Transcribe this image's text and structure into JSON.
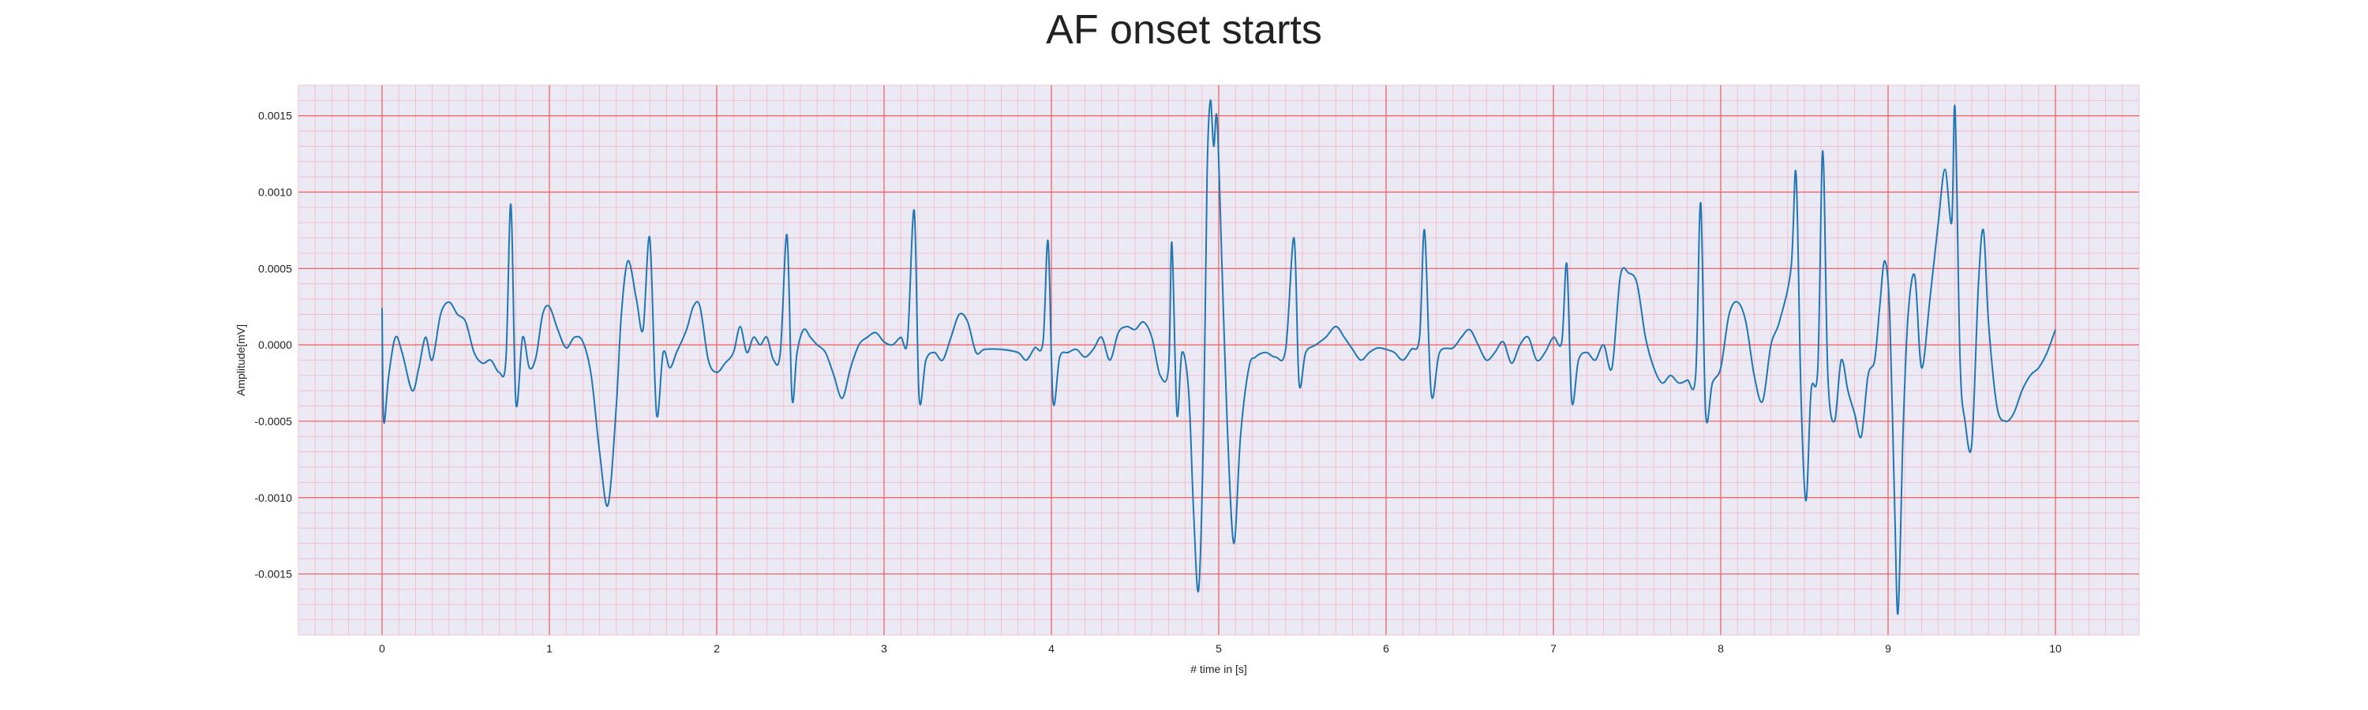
{
  "chart_data": {
    "type": "line",
    "title": "AF onset starts",
    "xlabel": "# time in [s]",
    "ylabel": "Amplitude[mV]",
    "xlim": [
      -0.5,
      10.5
    ],
    "ylim": [
      -0.0019,
      0.0017
    ],
    "xticks": [
      0,
      1,
      2,
      3,
      4,
      5,
      6,
      7,
      8,
      9,
      10
    ],
    "xtick_labels": [
      "0",
      "1",
      "2",
      "3",
      "4",
      "5",
      "6",
      "7",
      "8",
      "9",
      "10"
    ],
    "yticks": [
      0.0015,
      0.001,
      0.0005,
      0.0,
      -0.0005,
      -0.001,
      -0.0015
    ],
    "ytick_labels": [
      "0.0015",
      "0.0010",
      "0.0005",
      "0.0000",
      "-0.0005",
      "-0.0010",
      "-0.0015"
    ],
    "grid": true,
    "colors": {
      "background": "#eae9f4",
      "major_grid": "#f25a5a",
      "minor_grid": "#f2b8c4",
      "line": "#1f77b4"
    },
    "series": [
      {
        "points": [
          [
            0.0,
            0.00024
          ],
          [
            0.01,
            -0.0005
          ],
          [
            0.04,
            -0.0002
          ],
          [
            0.08,
            5e-05
          ],
          [
            0.12,
            -5e-05
          ],
          [
            0.18,
            -0.0003
          ],
          [
            0.22,
            -0.00015
          ],
          [
            0.26,
            5e-05
          ],
          [
            0.3,
            -0.0001
          ],
          [
            0.35,
            0.0002
          ],
          [
            0.4,
            0.00028
          ],
          [
            0.45,
            0.0002
          ],
          [
            0.5,
            0.00015
          ],
          [
            0.55,
            -5e-05
          ],
          [
            0.6,
            -0.00012
          ],
          [
            0.65,
            -0.0001
          ],
          [
            0.7,
            -0.00018
          ],
          [
            0.74,
            -0.0001
          ],
          [
            0.77,
            0.00092
          ],
          [
            0.8,
            -0.00038
          ],
          [
            0.84,
            5e-05
          ],
          [
            0.88,
            -0.00015
          ],
          [
            0.92,
            -8e-05
          ],
          [
            0.96,
            0.0002
          ],
          [
            1.0,
            0.00025
          ],
          [
            1.05,
            0.0001
          ],
          [
            1.1,
            -2e-05
          ],
          [
            1.15,
            5e-05
          ],
          [
            1.2,
            2e-05
          ],
          [
            1.25,
            -0.0002
          ],
          [
            1.3,
            -0.0007
          ],
          [
            1.35,
            -0.00105
          ],
          [
            1.4,
            -0.0004
          ],
          [
            1.43,
            0.0002
          ],
          [
            1.47,
            0.00055
          ],
          [
            1.52,
            0.0003
          ],
          [
            1.56,
            0.0001
          ],
          [
            1.6,
            0.0007
          ],
          [
            1.64,
            -0.00045
          ],
          [
            1.68,
            -5e-05
          ],
          [
            1.72,
            -0.00015
          ],
          [
            1.76,
            -5e-05
          ],
          [
            1.82,
            0.0001
          ],
          [
            1.86,
            0.00025
          ],
          [
            1.9,
            0.00025
          ],
          [
            1.95,
            -0.0001
          ],
          [
            2.0,
            -0.00018
          ],
          [
            2.05,
            -0.00012
          ],
          [
            2.1,
            -5e-05
          ],
          [
            2.14,
            0.00012
          ],
          [
            2.18,
            -5e-05
          ],
          [
            2.22,
            5e-05
          ],
          [
            2.26,
            0.0
          ],
          [
            2.3,
            5e-05
          ],
          [
            2.34,
            -0.0001
          ],
          [
            2.38,
            -5e-05
          ],
          [
            2.42,
            0.00072
          ],
          [
            2.45,
            -0.00035
          ],
          [
            2.48,
            -5e-05
          ],
          [
            2.52,
            0.0001
          ],
          [
            2.56,
            5e-05
          ],
          [
            2.6,
            0.0
          ],
          [
            2.65,
            -5e-05
          ],
          [
            2.7,
            -0.0002
          ],
          [
            2.75,
            -0.00035
          ],
          [
            2.8,
            -0.00015
          ],
          [
            2.85,
            0.0
          ],
          [
            2.9,
            5e-05
          ],
          [
            2.95,
            8e-05
          ],
          [
            3.0,
            2e-05
          ],
          [
            3.05,
            0.0
          ],
          [
            3.1,
            5e-05
          ],
          [
            3.14,
            3e-05
          ],
          [
            3.18,
            0.00088
          ],
          [
            3.21,
            -0.00035
          ],
          [
            3.25,
            -0.0001
          ],
          [
            3.3,
            -5e-05
          ],
          [
            3.35,
            -0.0001
          ],
          [
            3.4,
            5e-05
          ],
          [
            3.45,
            0.0002
          ],
          [
            3.5,
            0.00015
          ],
          [
            3.55,
            -5e-05
          ],
          [
            3.6,
            -3e-05
          ],
          [
            3.7,
            -3e-05
          ],
          [
            3.8,
            -5e-05
          ],
          [
            3.85,
            -0.0001
          ],
          [
            3.9,
            -2e-05
          ],
          [
            3.95,
            2e-05
          ],
          [
            3.98,
            0.00068
          ],
          [
            4.01,
            -0.00037
          ],
          [
            4.05,
            -8e-05
          ],
          [
            4.1,
            -5e-05
          ],
          [
            4.15,
            -3e-05
          ],
          [
            4.2,
            -8e-05
          ],
          [
            4.25,
            -3e-05
          ],
          [
            4.3,
            5e-05
          ],
          [
            4.35,
            -0.0001
          ],
          [
            4.4,
            8e-05
          ],
          [
            4.45,
            0.00012
          ],
          [
            4.5,
            0.0001
          ],
          [
            4.55,
            0.00015
          ],
          [
            4.6,
            5e-05
          ],
          [
            4.65,
            -0.0002
          ],
          [
            4.7,
            -0.00015
          ],
          [
            4.72,
            0.00067
          ],
          [
            4.75,
            -0.00045
          ],
          [
            4.78,
            -5e-05
          ],
          [
            4.82,
            -0.0003
          ],
          [
            4.85,
            -0.0011
          ],
          [
            4.88,
            -0.0016
          ],
          [
            4.91,
            -0.0005
          ],
          [
            4.93,
            0.0011
          ],
          [
            4.95,
            0.0016
          ],
          [
            4.97,
            0.0013
          ],
          [
            4.99,
            0.00148
          ],
          [
            5.02,
            0.0005
          ],
          [
            5.05,
            -0.0005
          ],
          [
            5.09,
            -0.0013
          ],
          [
            5.13,
            -0.0006
          ],
          [
            5.18,
            -0.00015
          ],
          [
            5.22,
            -8e-05
          ],
          [
            5.28,
            -5e-05
          ],
          [
            5.34,
            -8e-05
          ],
          [
            5.4,
            -3e-05
          ],
          [
            5.45,
            0.0007
          ],
          [
            5.48,
            -0.00025
          ],
          [
            5.52,
            -5e-05
          ],
          [
            5.58,
            0.0
          ],
          [
            5.64,
            5e-05
          ],
          [
            5.7,
            0.00012
          ],
          [
            5.75,
            5e-05
          ],
          [
            5.8,
            -3e-05
          ],
          [
            5.85,
            -0.0001
          ],
          [
            5.9,
            -5e-05
          ],
          [
            5.95,
            -2e-05
          ],
          [
            6.0,
            -3e-05
          ],
          [
            6.05,
            -5e-05
          ],
          [
            6.1,
            -0.0001
          ],
          [
            6.15,
            -3e-05
          ],
          [
            6.2,
            5e-05
          ],
          [
            6.23,
            0.00075
          ],
          [
            6.27,
            -0.00032
          ],
          [
            6.32,
            -5e-05
          ],
          [
            6.4,
            -2e-05
          ],
          [
            6.45,
            5e-05
          ],
          [
            6.5,
            0.0001
          ],
          [
            6.55,
            0.0
          ],
          [
            6.6,
            -0.0001
          ],
          [
            6.65,
            -5e-05
          ],
          [
            6.7,
            2e-05
          ],
          [
            6.75,
            -0.00012
          ],
          [
            6.8,
            0.0
          ],
          [
            6.85,
            5e-05
          ],
          [
            6.9,
            -0.0001
          ],
          [
            6.95,
            -5e-05
          ],
          [
            7.0,
            5e-05
          ],
          [
            7.05,
            2e-05
          ],
          [
            7.08,
            0.00053
          ],
          [
            7.11,
            -0.00037
          ],
          [
            7.15,
            -0.0001
          ],
          [
            7.2,
            -5e-05
          ],
          [
            7.25,
            -0.0001
          ],
          [
            7.3,
            0.0
          ],
          [
            7.35,
            -0.00015
          ],
          [
            7.4,
            0.00045
          ],
          [
            7.45,
            0.00047
          ],
          [
            7.5,
            0.0004
          ],
          [
            7.55,
            5e-05
          ],
          [
            7.6,
            -0.00015
          ],
          [
            7.65,
            -0.00025
          ],
          [
            7.7,
            -0.0002
          ],
          [
            7.75,
            -0.00025
          ],
          [
            7.8,
            -0.00023
          ],
          [
            7.85,
            -0.0002
          ],
          [
            7.88,
            0.00093
          ],
          [
            7.91,
            -0.00045
          ],
          [
            7.95,
            -0.00025
          ],
          [
            8.0,
            -0.00015
          ],
          [
            8.05,
            0.0002
          ],
          [
            8.1,
            0.00028
          ],
          [
            8.15,
            0.00015
          ],
          [
            8.2,
            -0.0002
          ],
          [
            8.25,
            -0.00037
          ],
          [
            8.3,
            0.0
          ],
          [
            8.35,
            0.00015
          ],
          [
            8.42,
            0.0005
          ],
          [
            8.45,
            0.00112
          ],
          [
            8.48,
            -0.00035
          ],
          [
            8.51,
            -0.00102
          ],
          [
            8.54,
            -0.0003
          ],
          [
            8.58,
            -0.00015
          ],
          [
            8.61,
            0.00127
          ],
          [
            8.64,
            -0.0002
          ],
          [
            8.68,
            -0.0005
          ],
          [
            8.72,
            -0.0001
          ],
          [
            8.76,
            -0.0003
          ],
          [
            8.8,
            -0.00045
          ],
          [
            8.84,
            -0.0006
          ],
          [
            8.88,
            -0.0002
          ],
          [
            8.92,
            -0.0001
          ],
          [
            8.95,
            0.00025
          ],
          [
            8.98,
            0.00055
          ],
          [
            9.01,
            0.0002
          ],
          [
            9.04,
            -0.0011
          ],
          [
            9.06,
            -0.00175
          ],
          [
            9.09,
            -0.00055
          ],
          [
            9.12,
            0.0002
          ],
          [
            9.16,
            0.00045
          ],
          [
            9.2,
            -0.00015
          ],
          [
            9.25,
            0.0003
          ],
          [
            9.3,
            0.0008
          ],
          [
            9.34,
            0.00115
          ],
          [
            9.38,
            0.0008
          ],
          [
            9.4,
            0.00155
          ],
          [
            9.43,
            -0.0001
          ],
          [
            9.46,
            -0.0005
          ],
          [
            9.5,
            -0.00065
          ],
          [
            9.54,
            0.0004
          ],
          [
            9.57,
            0.00075
          ],
          [
            9.6,
            0.00015
          ],
          [
            9.65,
            -0.0004
          ],
          [
            9.7,
            -0.0005
          ],
          [
            9.75,
            -0.00045
          ],
          [
            9.8,
            -0.0003
          ],
          [
            9.85,
            -0.0002
          ],
          [
            9.9,
            -0.00015
          ],
          [
            9.95,
            -5e-05
          ],
          [
            10.0,
            0.0001
          ]
        ]
      }
    ]
  }
}
